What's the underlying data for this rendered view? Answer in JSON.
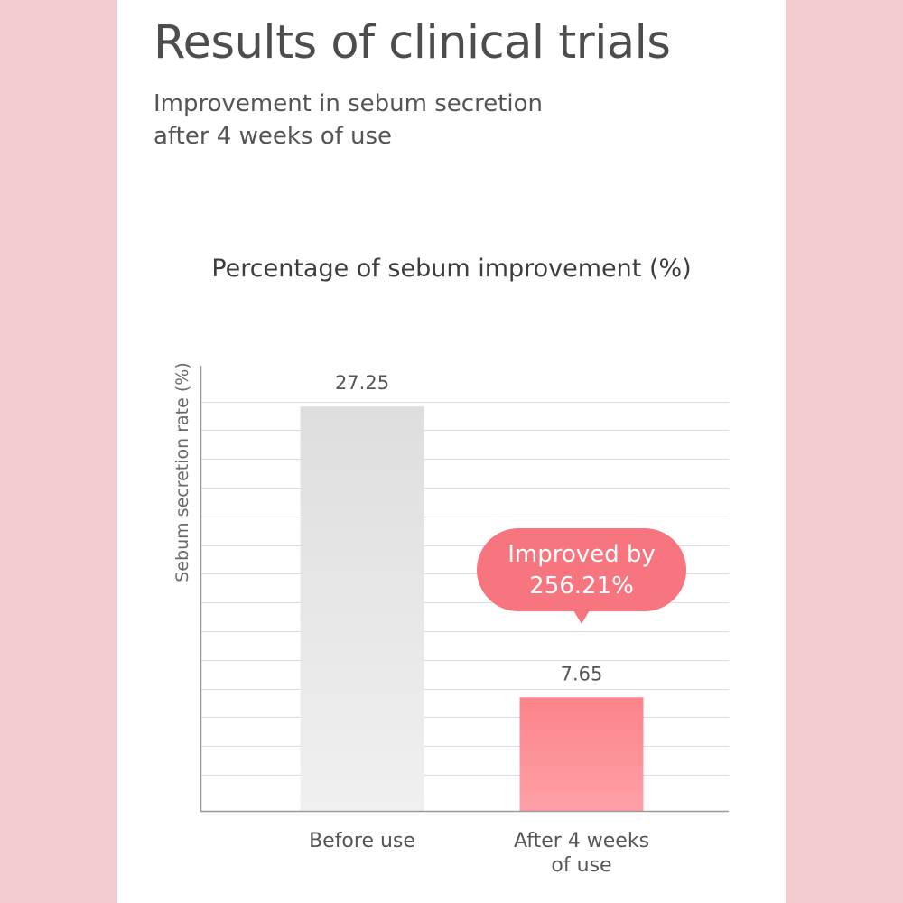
{
  "header": {
    "title": "Results of clinical trials",
    "subtitle_line1": "Improvement in sebum secretion",
    "subtitle_line2": "after 4 weeks of use"
  },
  "colors": {
    "background": "#f2cbd0",
    "card": "#ffffff",
    "bar_before_top": "#dedede",
    "bar_before_bottom": "#f0f0f0",
    "bar_after_top": "#fd838b",
    "bar_after_bottom": "#fda0a6",
    "callout": "#f7757e",
    "gridline": "#dcdcdc",
    "axis": "#999999"
  },
  "chart_data": {
    "type": "bar",
    "title": "Percentage of sebum improvement (%)",
    "ylabel": "Sebum secretion rate (%)",
    "xlabel": "",
    "categories": [
      [
        "Before use"
      ],
      [
        "After 4 weeks",
        "of use"
      ]
    ],
    "values": [
      27.25,
      7.65
    ],
    "value_labels": [
      "27.25",
      "7.65"
    ],
    "ylim": [
      0,
      30
    ],
    "grid": true,
    "annotation": {
      "lines": [
        "Improved by",
        "256.21%"
      ],
      "target_index": 1
    }
  }
}
